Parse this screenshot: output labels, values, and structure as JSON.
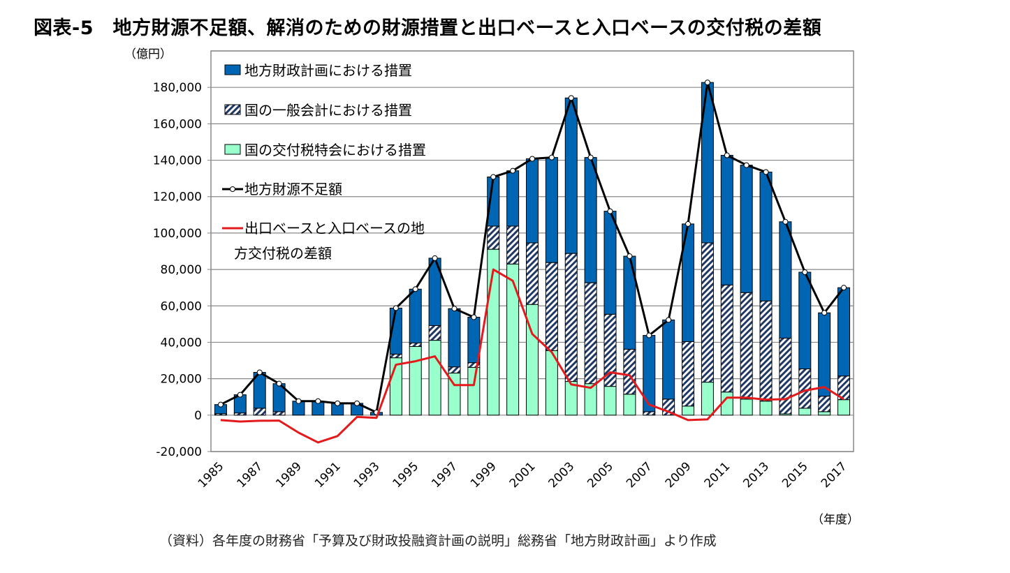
{
  "title": "図表-5　地方財源不足額、解消のための財源措置と出口ベースと入口ベースの交付税の差額",
  "source_note": "（資料）各年度の財務省「予算及び財政投融資計画の説明」総務省「地方財政計画」より作成",
  "chart_data": {
    "type": "bar",
    "stacked": true,
    "title": "",
    "ylabel": "（億円）",
    "xlabel": "（年度）",
    "ylim": [
      -20000,
      200000
    ],
    "yticks": [
      -20000,
      0,
      20000,
      40000,
      60000,
      80000,
      100000,
      120000,
      140000,
      160000,
      180000
    ],
    "ytick_labels": [
      "-20,000",
      "0",
      "20,000",
      "40,000",
      "60,000",
      "80,000",
      "100,000",
      "120,000",
      "140,000",
      "160,000",
      "180,000"
    ],
    "grid": true,
    "legend_position": "top-left",
    "categories": [
      "1985",
      "1986",
      "1987",
      "1988",
      "1989",
      "1990",
      "1991",
      "1992",
      "1993",
      "1994",
      "1995",
      "1996",
      "1997",
      "1998",
      "1999",
      "2000",
      "2001",
      "2002",
      "2003",
      "2004",
      "2005",
      "2006",
      "2007",
      "2008",
      "2009",
      "2010",
      "2011",
      "2012",
      "2013",
      "2014",
      "2015",
      "2016",
      "2017"
    ],
    "xtick_labels_shown": [
      "1985",
      "1987",
      "1989",
      "1991",
      "1993",
      "1995",
      "1997",
      "1999",
      "2001",
      "2003",
      "2005",
      "2007",
      "2009",
      "2011",
      "2013",
      "2015",
      "2017"
    ],
    "series": [
      {
        "name": "国の交付税特会における措置",
        "kind": "bar",
        "color": "#99FFCC",
        "values": [
          0,
          0,
          0,
          0,
          0,
          0,
          0,
          0,
          0,
          31500,
          37700,
          41100,
          23100,
          26200,
          91100,
          83000,
          60800,
          35400,
          18500,
          17300,
          15800,
          11500,
          0,
          0,
          5000,
          18100,
          12700,
          8800,
          7700,
          700,
          3800,
          1900,
          8500
        ]
      },
      {
        "name": "国の一般会計における措置",
        "kind": "bar",
        "color": "#1F3864",
        "pattern": "diagonal-hatch",
        "values": [
          800,
          1200,
          3800,
          1900,
          0,
          0,
          0,
          0,
          0,
          2000,
          1900,
          8100,
          3400,
          2600,
          12700,
          20800,
          33800,
          48400,
          70300,
          55400,
          39600,
          24700,
          1900,
          8800,
          35400,
          76500,
          58800,
          58500,
          55000,
          41600,
          21600,
          8500,
          13000
        ]
      },
      {
        "name": "地方財政計画における措置",
        "kind": "bar",
        "color": "#0066B3",
        "values": [
          5000,
          10000,
          19700,
          15400,
          7700,
          7700,
          6500,
          6500,
          1500,
          25300,
          29600,
          37000,
          32000,
          25000,
          27000,
          30400,
          46200,
          57700,
          85400,
          68800,
          56600,
          51100,
          41900,
          43500,
          64600,
          88100,
          71200,
          70000,
          70800,
          63900,
          53100,
          45800,
          48500
        ]
      },
      {
        "name": "地方財源不足額",
        "kind": "line",
        "color": "#000000",
        "marker": "white-circle",
        "values": [
          5800,
          11200,
          23500,
          17300,
          7700,
          7700,
          6500,
          6500,
          1500,
          58800,
          69200,
          86200,
          58500,
          53800,
          130800,
          134200,
          140800,
          141500,
          174200,
          141500,
          112000,
          87300,
          43800,
          52300,
          105000,
          182700,
          142700,
          137300,
          133500,
          106200,
          78500,
          56200,
          70000
        ]
      },
      {
        "name": "出口ベースと入口ベースの地方交付税の差額",
        "kind": "line",
        "color": "#E31A1C",
        "values": [
          -2700,
          -3500,
          -3100,
          -3000,
          -9600,
          -15000,
          -11500,
          -1000,
          -1500,
          27700,
          29600,
          32300,
          16500,
          16500,
          80000,
          73800,
          44600,
          34600,
          16900,
          15000,
          23500,
          21900,
          5800,
          1900,
          -2700,
          -2300,
          9600,
          9600,
          8500,
          8800,
          13500,
          15400,
          8800
        ]
      }
    ],
    "legend": {
      "items": [
        "地方財政計画における措置",
        "国の一般会計における措置",
        "国の交付税特会における措置",
        "地方財源不足額"
      ],
      "last_line1": "出口ベースと入口ベースの地",
      "last_line2": "方交付税の差額"
    }
  }
}
